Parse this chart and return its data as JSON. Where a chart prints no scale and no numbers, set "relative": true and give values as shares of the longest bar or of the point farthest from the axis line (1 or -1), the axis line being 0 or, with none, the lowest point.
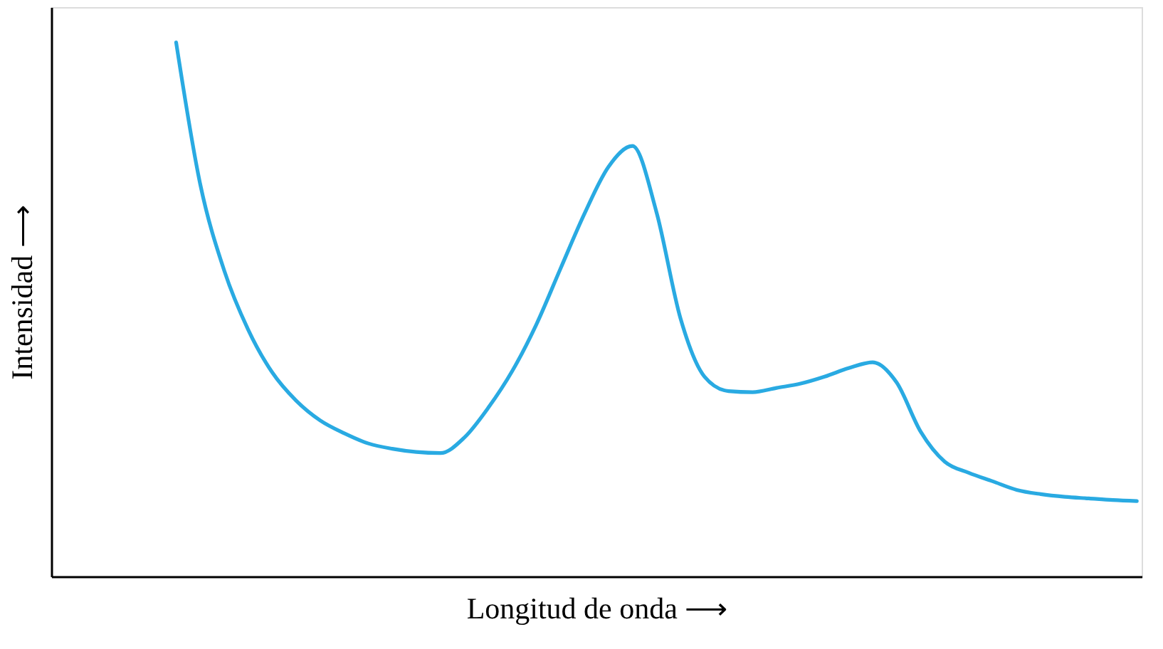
{
  "chart_data": {
    "type": "line",
    "relative": true,
    "xlabel": "Longitud de onda ⟶",
    "ylabel": "Intensidad ⟶",
    "categories": [
      null,
      null,
      null,
      null,
      null,
      null,
      null,
      null,
      null,
      null,
      null,
      null,
      null,
      null,
      null,
      null,
      null,
      null,
      null,
      null,
      null,
      null,
      null,
      null,
      null,
      null,
      null,
      null,
      null,
      null,
      null,
      null,
      null,
      null,
      null,
      null,
      null,
      null,
      null,
      null,
      null
    ],
    "series": [
      {
        "color": "#29aae2",
        "values": [
          1.0,
          0.735,
          0.573,
          0.462,
          0.382,
          0.329,
          0.292,
          0.268,
          0.249,
          0.239,
          0.233,
          0.231,
          0.26,
          0.316,
          0.385,
          0.472,
          0.576,
          0.679,
          0.767,
          0.806,
          0.682,
          0.483,
          0.374,
          0.347,
          0.345,
          0.353,
          0.361,
          0.374,
          0.39,
          0.401,
          0.363,
          0.271,
          0.215,
          0.194,
          0.178,
          0.162,
          0.154,
          0.149,
          0.146,
          0.143,
          0.141
        ]
      }
    ],
    "grid": false,
    "marker": "none",
    "line_style": "solid"
  }
}
